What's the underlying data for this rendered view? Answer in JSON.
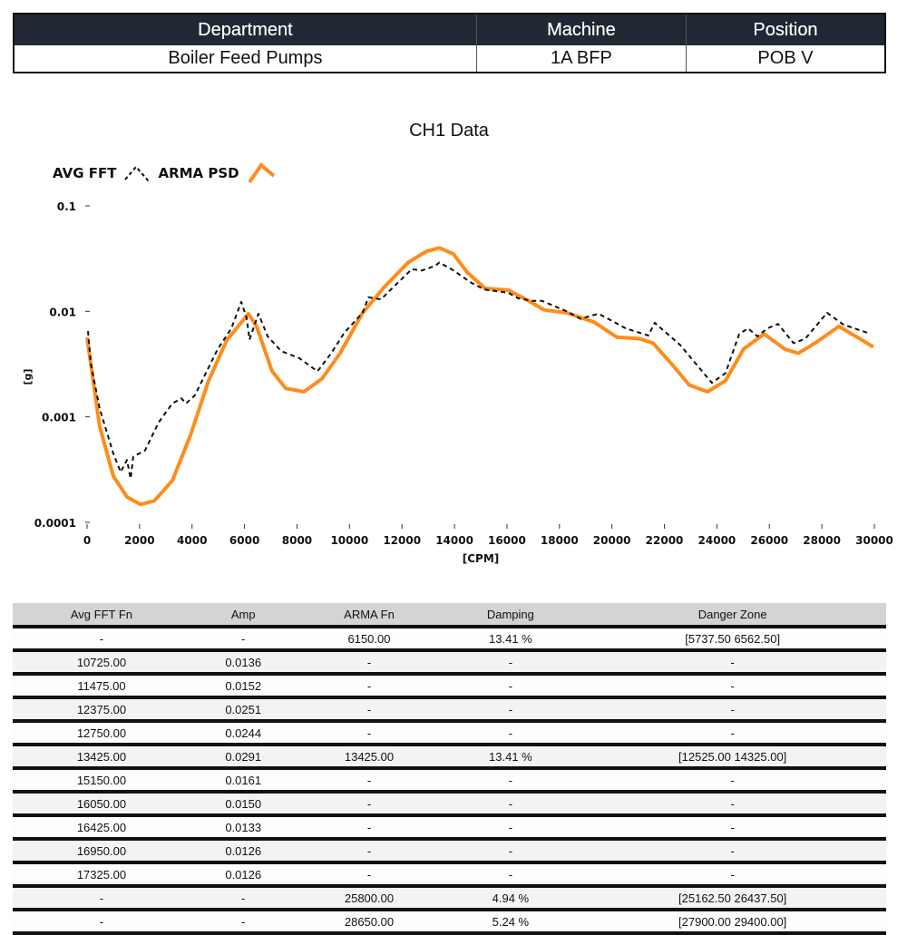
{
  "info_table": {
    "headers": [
      "Department",
      "Machine",
      "Position"
    ],
    "values": [
      "Boiler Feed Pumps",
      "1A BFP",
      "POB V"
    ]
  },
  "chart_data": {
    "type": "line",
    "title": "CH1 Data",
    "xlabel": "[CPM]",
    "ylabel": "[g]",
    "xlim": [
      0,
      30000
    ],
    "ylim": [
      0.0001,
      0.1
    ],
    "yscale": "log",
    "grid": false,
    "legend": "top-left",
    "x_ticks": [
      "0",
      "2000",
      "4000",
      "6000",
      "8000",
      "10000",
      "12000",
      "14000",
      "16000",
      "18000",
      "20000",
      "22000",
      "24000",
      "26000",
      "28000",
      "30000"
    ],
    "y_ticks": [
      "0.1",
      "0.01",
      "0.001",
      "0.0001"
    ],
    "series": [
      {
        "name": "AVG FFT",
        "color": "#111111",
        "style": "dashed",
        "x": [
          35,
          140,
          480,
          1000,
          1280,
          1520,
          1660,
          1760,
          2210,
          2730,
          3250,
          3590,
          3770,
          4110,
          4460,
          4980,
          5500,
          5875,
          6080,
          6190,
          6530,
          6880,
          7400,
          8090,
          8780,
          9300,
          9810,
          10500,
          10725,
          11200,
          11475,
          12375,
          12750,
          13270,
          13425,
          13960,
          14650,
          15150,
          16050,
          16425,
          16950,
          17325,
          18280,
          18800,
          19490,
          20530,
          21390,
          21630,
          22600,
          23810,
          24330,
          24850,
          25190,
          25540,
          25920,
          26330,
          26920,
          27370,
          28200,
          28820,
          29790
        ],
        "y": [
          0.0065,
          0.0032,
          0.0012,
          0.00045,
          0.0003,
          0.00039,
          0.00026,
          0.00042,
          0.00048,
          0.00089,
          0.00134,
          0.0015,
          0.00134,
          0.0016,
          0.0024,
          0.0044,
          0.0069,
          0.0123,
          0.0087,
          0.0054,
          0.0095,
          0.0058,
          0.0042,
          0.0036,
          0.0027,
          0.004,
          0.0063,
          0.0097,
          0.0136,
          0.013,
          0.0152,
          0.0251,
          0.0244,
          0.027,
          0.0291,
          0.0245,
          0.0186,
          0.0161,
          0.015,
          0.0133,
          0.0126,
          0.0126,
          0.01,
          0.0085,
          0.0095,
          0.0069,
          0.0059,
          0.0078,
          0.0048,
          0.0021,
          0.0026,
          0.0061,
          0.0069,
          0.0058,
          0.0069,
          0.0076,
          0.005,
          0.0055,
          0.0097,
          0.0075,
          0.0062
        ]
      },
      {
        "name": "ARMA PSD",
        "color": "#ff8c1a",
        "style": "solid",
        "x": [
          0,
          480,
          1000,
          1520,
          2040,
          2560,
          3250,
          3940,
          4630,
          5320,
          6150,
          6460,
          7050,
          7570,
          8260,
          8950,
          9640,
          10500,
          11370,
          12230,
          12930,
          13425,
          13960,
          14480,
          15170,
          16040,
          16730,
          17420,
          18280,
          19320,
          20180,
          21050,
          21570,
          22260,
          22950,
          23640,
          24330,
          25020,
          25800,
          26580,
          27100,
          27790,
          28650,
          29340,
          29960
        ],
        "y": [
          0.00566,
          0.00081,
          0.000275,
          0.000174,
          0.000148,
          0.00016,
          0.000248,
          0.00067,
          0.0022,
          0.0053,
          0.0095,
          0.0072,
          0.0027,
          0.00186,
          0.00173,
          0.0023,
          0.004,
          0.0097,
          0.0175,
          0.029,
          0.037,
          0.04,
          0.035,
          0.0235,
          0.0165,
          0.0159,
          0.013,
          0.0103,
          0.0097,
          0.0079,
          0.0057,
          0.0055,
          0.005,
          0.0032,
          0.002,
          0.00173,
          0.0022,
          0.0044,
          0.0061,
          0.0044,
          0.004,
          0.0051,
          0.0072,
          0.0057,
          0.0046
        ]
      }
    ]
  },
  "results_table": {
    "headers": [
      "Avg FFT Fn",
      "Amp",
      "ARMA Fn",
      "Damping",
      "Danger Zone"
    ],
    "rows": [
      [
        "-",
        "-",
        "6150.00",
        "13.41 %",
        "[5737.50  6562.50]"
      ],
      [
        "10725.00",
        "0.0136",
        "-",
        "-",
        "-"
      ],
      [
        "11475.00",
        "0.0152",
        "-",
        "-",
        "-"
      ],
      [
        "12375.00",
        "0.0251",
        "-",
        "-",
        "-"
      ],
      [
        "12750.00",
        "0.0244",
        "-",
        "-",
        "-"
      ],
      [
        "13425.00",
        "0.0291",
        "13425.00",
        "13.41 %",
        "[12525.00  14325.00]"
      ],
      [
        "15150.00",
        "0.0161",
        "-",
        "-",
        "-"
      ],
      [
        "16050.00",
        "0.0150",
        "-",
        "-",
        "-"
      ],
      [
        "16425.00",
        "0.0133",
        "-",
        "-",
        "-"
      ],
      [
        "16950.00",
        "0.0126",
        "-",
        "-",
        "-"
      ],
      [
        "17325.00",
        "0.0126",
        "-",
        "-",
        "-"
      ],
      [
        "-",
        "-",
        "25800.00",
        "4.94 %",
        "[25162.50  26437.50]"
      ],
      [
        "-",
        "-",
        "28650.00",
        "5.24 %",
        "[27900.00  29400.00]"
      ]
    ]
  }
}
